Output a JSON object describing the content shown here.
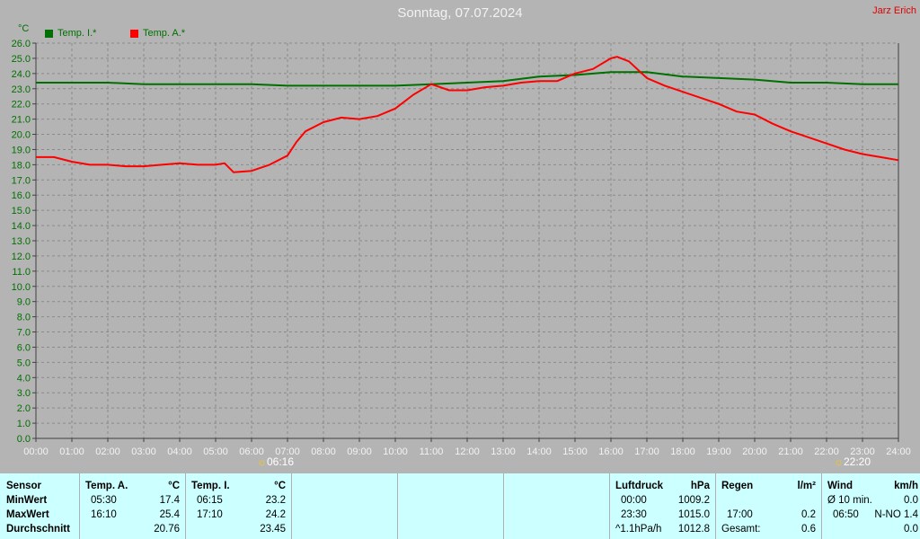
{
  "header": {
    "title": "Sonntag, 07.07.2024",
    "author": "Jarz Erich"
  },
  "chart_data": {
    "type": "line",
    "ylabel": "°C",
    "ylim": [
      0,
      26
    ],
    "yticks": [
      "0.0",
      "1.0",
      "2.0",
      "3.0",
      "4.0",
      "5.0",
      "6.0",
      "7.0",
      "8.0",
      "9.0",
      "10.0",
      "11.0",
      "12.0",
      "13.0",
      "14.0",
      "15.0",
      "16.0",
      "17.0",
      "18.0",
      "19.0",
      "20.0",
      "21.0",
      "22.0",
      "23.0",
      "24.0",
      "25.0",
      "26.0"
    ],
    "xticks": [
      "00:00",
      "01:00",
      "02:00",
      "03:00",
      "04:00",
      "05:00",
      "06:00",
      "07:00",
      "08:00",
      "09:00",
      "10:00",
      "11:00",
      "12:00",
      "13:00",
      "14:00",
      "15:00",
      "16:00",
      "17:00",
      "18:00",
      "19:00",
      "20:00",
      "21:00",
      "22:00",
      "23:00",
      "24:00"
    ],
    "grid": true,
    "legend_position": "top-left",
    "sunrise": "06:16",
    "sunset": "22:20",
    "series": [
      {
        "name": "Temp. I.*",
        "color": "#007000",
        "x": [
          0,
          1,
          2,
          3,
          4,
          5,
          6,
          7,
          8,
          9,
          10,
          11,
          12,
          13,
          14,
          15,
          16,
          17,
          18,
          19,
          20,
          21,
          22,
          23,
          24
        ],
        "y": [
          23.4,
          23.4,
          23.4,
          23.3,
          23.3,
          23.3,
          23.3,
          23.2,
          23.2,
          23.2,
          23.2,
          23.3,
          23.4,
          23.5,
          23.8,
          23.9,
          24.1,
          24.1,
          23.8,
          23.7,
          23.6,
          23.4,
          23.4,
          23.3,
          23.3
        ]
      },
      {
        "name": "Temp. A.*",
        "color": "#ff0000",
        "x": [
          0,
          0.5,
          1,
          1.5,
          2,
          2.5,
          3,
          3.5,
          4,
          4.5,
          5,
          5.25,
          5.5,
          6,
          6.5,
          7,
          7.25,
          7.5,
          8,
          8.5,
          9,
          9.5,
          10,
          10.5,
          11,
          11.5,
          12,
          12.5,
          13,
          13.5,
          14,
          14.5,
          15,
          15.5,
          16,
          16.17,
          16.5,
          17,
          17.5,
          18,
          18.5,
          19,
          19.5,
          20,
          20.5,
          21,
          21.5,
          22,
          22.5,
          23,
          23.5,
          24
        ],
        "y": [
          18.5,
          18.5,
          18.2,
          18.0,
          18.0,
          17.9,
          17.9,
          18.0,
          18.1,
          18.0,
          18.0,
          18.1,
          17.5,
          17.6,
          18.0,
          18.6,
          19.5,
          20.2,
          20.8,
          21.1,
          21.0,
          21.2,
          21.7,
          22.6,
          23.3,
          22.9,
          22.9,
          23.1,
          23.2,
          23.4,
          23.5,
          23.5,
          24.0,
          24.3,
          25.0,
          25.1,
          24.8,
          23.7,
          23.2,
          22.8,
          22.4,
          22.0,
          21.5,
          21.3,
          20.7,
          20.2,
          19.8,
          19.4,
          19.0,
          18.7,
          18.5,
          18.3
        ]
      }
    ]
  },
  "table": {
    "sensor": {
      "head": "Sensor",
      "min": "MinWert",
      "max": "MaxWert",
      "avg": "Durchschnitt"
    },
    "temp_a": {
      "head": "Temp. A.",
      "unit": "°C",
      "min_time": "05:30",
      "min_val": "17.4",
      "max_time": "16:10",
      "max_val": "25.4",
      "avg": "20.76"
    },
    "temp_i": {
      "head": "Temp. I.",
      "unit": "°C",
      "min_time": "06:15",
      "min_val": "23.2",
      "max_time": "17:10",
      "max_val": "24.2",
      "avg": "23.45"
    },
    "pressure": {
      "head": "Luftdruck",
      "unit": "hPa",
      "min_time": "00:00",
      "min_val": "1009.2",
      "max_time": "23:30",
      "max_val": "1015.0",
      "trend": "^1.1hPa/h",
      "trend_val": "1012.8"
    },
    "rain": {
      "head": "Regen",
      "unit": "l/m²",
      "max_time": "17:00",
      "max_val": "0.2",
      "total_label": "Gesamt:",
      "total_val": "0.6"
    },
    "wind": {
      "head": "Wind",
      "unit": "km/h",
      "avg_label": "Ø 10 min.",
      "avg_val": "0.0",
      "max_time": "06:50",
      "max_val": "N-NO 1.4",
      "last_val": "0.0"
    }
  }
}
